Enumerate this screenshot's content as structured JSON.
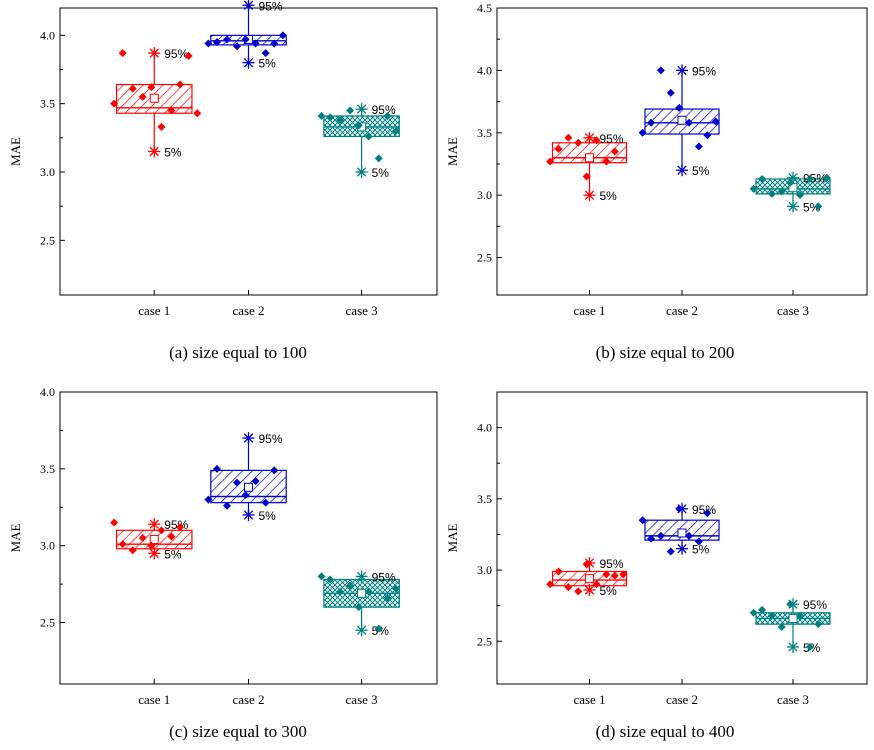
{
  "figure": {
    "captions": [
      "(a) size equal to 100",
      "(b) size equal to 200",
      "(c) size equal to 300",
      "(d) size equal to 400"
    ]
  },
  "chart_data": [
    {
      "type": "box",
      "caption": "(a) size equal to 100",
      "ylabel": "MAE",
      "ylim": [
        2.1,
        4.2
      ],
      "yticks": [
        "2.5",
        "3.0",
        "3.5",
        "4.0"
      ],
      "categories": [
        "case 1",
        "case 2",
        "case 3"
      ],
      "percentile_labels": [
        "95%",
        "5%"
      ],
      "colors": [
        "#ff0000",
        "#0000cc",
        "#008080"
      ],
      "boxes": [
        {
          "category": "case 1",
          "q1": 3.43,
          "median": 3.47,
          "q3": 3.64,
          "mean": 3.54,
          "p5": 3.15,
          "p95": 3.87,
          "points": [
            3.5,
            3.87,
            3.61,
            3.55,
            3.62,
            3.33,
            3.45,
            3.64,
            3.85,
            3.43
          ]
        },
        {
          "category": "case 2",
          "q1": 3.93,
          "median": 3.96,
          "q3": 4.0,
          "mean": 3.97,
          "p5": 3.8,
          "p95": 4.22,
          "points": [
            3.94,
            3.95,
            3.97,
            3.92,
            3.97,
            3.94,
            3.87,
            3.94,
            4.0
          ]
        },
        {
          "category": "case 3",
          "q1": 3.26,
          "median": 3.33,
          "q3": 3.41,
          "mean": 3.33,
          "p5": 3.0,
          "p95": 3.46,
          "points": [
            3.41,
            3.4,
            3.38,
            3.45,
            3.34,
            3.26,
            3.1,
            3.41,
            3.3
          ]
        }
      ]
    },
    {
      "type": "box",
      "caption": "(b) size equal to 200",
      "ylabel": "MAE",
      "ylim": [
        2.2,
        4.5
      ],
      "yticks": [
        "2.5",
        "3.0",
        "3.5",
        "4.0",
        "4.5"
      ],
      "categories": [
        "case 1",
        "case 2",
        "case 3"
      ],
      "percentile_labels": [
        "95%",
        "5%"
      ],
      "colors": [
        "#ff0000",
        "#0000cc",
        "#008080"
      ],
      "boxes": [
        {
          "category": "case 1",
          "q1": 3.26,
          "median": 3.3,
          "q3": 3.42,
          "mean": 3.3,
          "p5": 3.0,
          "p95": 3.46,
          "points": [
            3.27,
            3.37,
            3.46,
            3.42,
            3.15,
            3.44,
            3.27,
            3.35
          ]
        },
        {
          "category": "case 2",
          "q1": 3.49,
          "median": 3.58,
          "q3": 3.69,
          "mean": 3.6,
          "p5": 3.2,
          "p95": 4.0,
          "points": [
            3.5,
            3.58,
            4.0,
            3.82,
            3.7,
            3.58,
            3.39,
            3.48,
            3.59
          ]
        },
        {
          "category": "case 3",
          "q1": 3.01,
          "median": 3.05,
          "q3": 3.13,
          "mean": 3.06,
          "p5": 2.91,
          "p95": 3.14,
          "points": [
            3.05,
            3.13,
            3.01,
            3.03,
            3.1,
            3.0,
            3.13,
            2.91,
            3.14
          ]
        }
      ]
    },
    {
      "type": "box",
      "caption": "(c) size equal to 300",
      "ylabel": "MAE",
      "ylim": [
        2.1,
        4.0
      ],
      "yticks": [
        "2.5",
        "3.0",
        "3.5",
        "4.0"
      ],
      "categories": [
        "case 1",
        "case 2",
        "case 3"
      ],
      "percentile_labels": [
        "95%",
        "5%"
      ],
      "colors": [
        "#ff0000",
        "#0000cc",
        "#008080"
      ],
      "boxes": [
        {
          "category": "case 1",
          "q1": 2.98,
          "median": 3.01,
          "q3": 3.1,
          "mean": 3.04,
          "p5": 2.95,
          "p95": 3.14,
          "points": [
            3.15,
            3.01,
            2.97,
            3.05,
            3.0,
            3.1,
            3.06,
            3.12
          ]
        },
        {
          "category": "case 2",
          "q1": 3.28,
          "median": 3.32,
          "q3": 3.49,
          "mean": 3.38,
          "p5": 3.2,
          "p95": 3.7,
          "points": [
            3.3,
            3.5,
            3.26,
            3.41,
            3.33,
            3.42,
            3.28,
            3.49
          ]
        },
        {
          "category": "case 3",
          "q1": 2.6,
          "median": 2.69,
          "q3": 2.78,
          "mean": 2.69,
          "p5": 2.45,
          "p95": 2.8,
          "points": [
            2.8,
            2.78,
            2.7,
            2.74,
            2.6,
            2.7,
            2.46,
            2.66,
            2.72
          ]
        }
      ]
    },
    {
      "type": "box",
      "caption": "(d) size equal to 400",
      "ylabel": "MAE",
      "ylim": [
        2.2,
        4.25
      ],
      "yticks": [
        "2.5",
        "3.0",
        "3.5",
        "4.0"
      ],
      "categories": [
        "case 1",
        "case 2",
        "case 3"
      ],
      "percentile_labels": [
        "95%",
        "5%"
      ],
      "colors": [
        "#ff0000",
        "#0000cc",
        "#008080"
      ],
      "boxes": [
        {
          "category": "case 1",
          "q1": 2.89,
          "median": 2.93,
          "q3": 2.99,
          "mean": 2.94,
          "p5": 2.86,
          "p95": 3.05,
          "points": [
            2.9,
            2.99,
            2.88,
            2.85,
            3.04,
            2.9,
            2.97,
            2.96,
            2.97
          ]
        },
        {
          "category": "case 2",
          "q1": 3.21,
          "median": 3.24,
          "q3": 3.35,
          "mean": 3.26,
          "p5": 3.15,
          "p95": 3.43,
          "points": [
            3.35,
            3.22,
            3.24,
            3.13,
            3.43,
            3.24,
            3.2,
            3.4
          ]
        },
        {
          "category": "case 3",
          "q1": 2.62,
          "median": 2.66,
          "q3": 2.7,
          "mean": 2.66,
          "p5": 2.46,
          "p95": 2.76,
          "points": [
            2.7,
            2.72,
            2.68,
            2.6,
            2.76,
            2.68,
            2.46,
            2.62
          ]
        }
      ]
    }
  ]
}
